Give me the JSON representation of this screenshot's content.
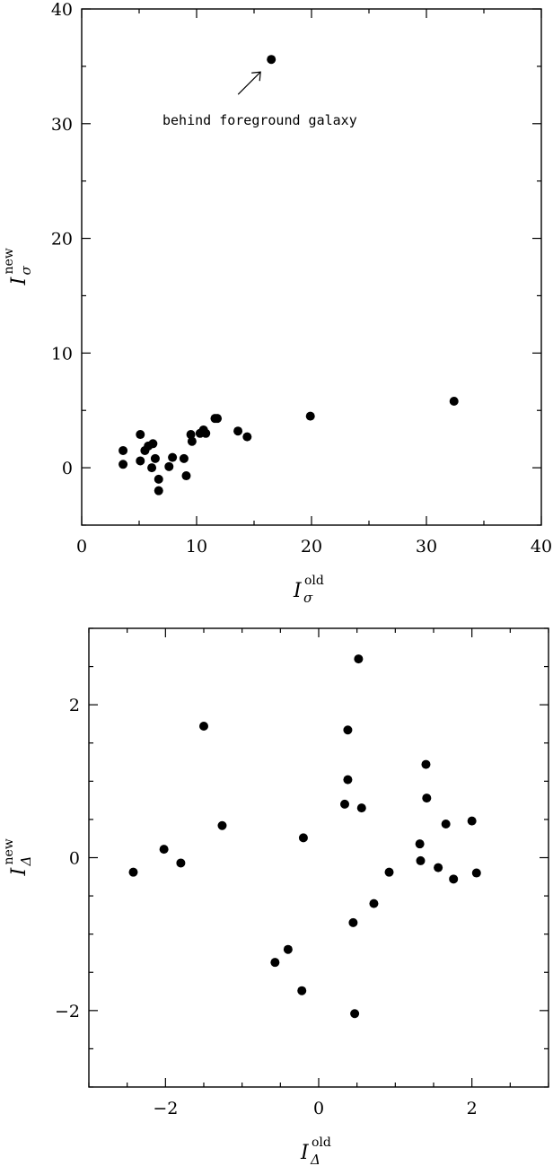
{
  "chart_data": [
    {
      "type": "scatter",
      "xlabel": {
        "main": "I",
        "sub": "σ",
        "sup": "old"
      },
      "ylabel": {
        "main": "I",
        "sub": "σ",
        "sup": "new"
      },
      "xlim": [
        0,
        40
      ],
      "ylim": [
        -5,
        40
      ],
      "xticks": [
        0,
        10,
        20,
        30,
        40
      ],
      "yticks": [
        0,
        10,
        20,
        30,
        40
      ],
      "minor_step": 5,
      "annotation": {
        "text": "behind foreground galaxy",
        "x": 16.5,
        "y": 35.6
      },
      "points": [
        {
          "x": 16.5,
          "y": 35.6
        },
        {
          "x": 32.4,
          "y": 5.8
        },
        {
          "x": 19.9,
          "y": 4.5
        },
        {
          "x": 11.6,
          "y": 4.3
        },
        {
          "x": 11.8,
          "y": 4.3
        },
        {
          "x": 13.6,
          "y": 3.2
        },
        {
          "x": 14.4,
          "y": 2.7
        },
        {
          "x": 10.6,
          "y": 3.3
        },
        {
          "x": 10.3,
          "y": 3.0
        },
        {
          "x": 10.8,
          "y": 3.0
        },
        {
          "x": 9.5,
          "y": 2.9
        },
        {
          "x": 9.6,
          "y": 2.3
        },
        {
          "x": 5.1,
          "y": 2.9
        },
        {
          "x": 6.2,
          "y": 2.1
        },
        {
          "x": 5.8,
          "y": 1.9
        },
        {
          "x": 5.5,
          "y": 1.5
        },
        {
          "x": 3.6,
          "y": 1.5
        },
        {
          "x": 3.6,
          "y": 0.3
        },
        {
          "x": 5.1,
          "y": 0.6
        },
        {
          "x": 6.4,
          "y": 0.8
        },
        {
          "x": 7.9,
          "y": 0.9
        },
        {
          "x": 8.9,
          "y": 0.8
        },
        {
          "x": 6.1,
          "y": 0.0
        },
        {
          "x": 7.6,
          "y": 0.1
        },
        {
          "x": 9.1,
          "y": -0.7
        },
        {
          "x": 6.7,
          "y": -1.0
        },
        {
          "x": 6.7,
          "y": -2.0
        }
      ]
    },
    {
      "type": "scatter",
      "xlabel": {
        "main": "I",
        "sub": "Δ",
        "sup": "old"
      },
      "ylabel": {
        "main": "I",
        "sub": "Δ",
        "sup": "new"
      },
      "xlim": [
        -3,
        3
      ],
      "ylim": [
        -3,
        3
      ],
      "xticks": [
        -2,
        0,
        2
      ],
      "yticks": [
        -2,
        0,
        2
      ],
      "xtick_labels": [
        "−2",
        "0",
        "2"
      ],
      "ytick_labels": [
        "−2",
        "0",
        "2"
      ],
      "minor_step": 0.5,
      "points": [
        {
          "x": 0.52,
          "y": 2.6
        },
        {
          "x": -1.5,
          "y": 1.72
        },
        {
          "x": 0.38,
          "y": 1.67
        },
        {
          "x": 1.4,
          "y": 1.22
        },
        {
          "x": 0.38,
          "y": 1.02
        },
        {
          "x": 1.41,
          "y": 0.78
        },
        {
          "x": 0.34,
          "y": 0.7
        },
        {
          "x": 0.56,
          "y": 0.65
        },
        {
          "x": 2.0,
          "y": 0.48
        },
        {
          "x": 1.66,
          "y": 0.44
        },
        {
          "x": -1.26,
          "y": 0.42
        },
        {
          "x": -0.2,
          "y": 0.26
        },
        {
          "x": 1.32,
          "y": 0.18
        },
        {
          "x": -2.02,
          "y": 0.11
        },
        {
          "x": 1.33,
          "y": -0.04
        },
        {
          "x": -1.8,
          "y": -0.07
        },
        {
          "x": 1.56,
          "y": -0.13
        },
        {
          "x": -2.42,
          "y": -0.19
        },
        {
          "x": 0.92,
          "y": -0.19
        },
        {
          "x": 2.06,
          "y": -0.2
        },
        {
          "x": 1.76,
          "y": -0.28
        },
        {
          "x": 0.72,
          "y": -0.6
        },
        {
          "x": 0.45,
          "y": -0.85
        },
        {
          "x": -0.4,
          "y": -1.2
        },
        {
          "x": -0.57,
          "y": -1.37
        },
        {
          "x": -0.22,
          "y": -1.74
        },
        {
          "x": 0.47,
          "y": -2.04
        }
      ]
    }
  ]
}
